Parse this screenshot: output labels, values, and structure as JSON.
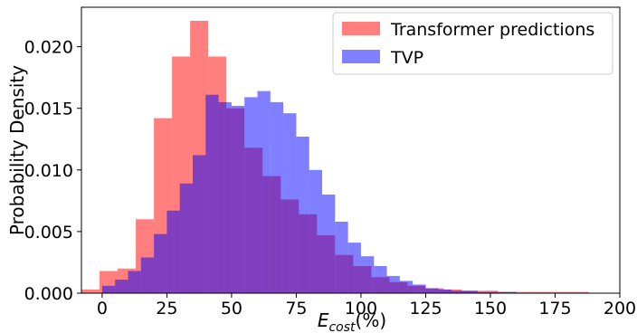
{
  "chart_data": {
    "type": "bar",
    "subtype": "overlapping-histogram",
    "title": "",
    "xlabel": "E",
    "xlabel_subscript": "cost",
    "xlabel_suffix": "(%)",
    "ylabel": "Probability Density",
    "xlim": [
      -8,
      200
    ],
    "ylim": [
      0,
      0.0232
    ],
    "x_ticks": [
      0,
      25,
      50,
      75,
      100,
      125,
      150,
      175,
      200
    ],
    "x_tick_labels": [
      "0",
      "25",
      "50",
      "75",
      "100",
      "125",
      "150",
      "175",
      "200"
    ],
    "y_ticks": [
      0,
      0.005,
      0.01,
      0.015,
      0.02
    ],
    "y_tick_labels": [
      "0.000",
      "0.005",
      "0.010",
      "0.015",
      "0.020"
    ],
    "grid": false,
    "legend_position": "top-right",
    "series": [
      {
        "name": "Transformer predictions",
        "color": "#ff0000",
        "alpha": 0.5,
        "bins": [
          [
            -8,
            -1,
            0.0003
          ],
          [
            -1,
            6,
            0.0018
          ],
          [
            6,
            13,
            0.002
          ],
          [
            13,
            20,
            0.006
          ],
          [
            20,
            27,
            0.0142
          ],
          [
            27,
            34,
            0.0192
          ],
          [
            34,
            41,
            0.0221
          ],
          [
            41,
            48,
            0.0192
          ],
          [
            48,
            55,
            0.015
          ],
          [
            55,
            62,
            0.0118
          ],
          [
            62,
            69,
            0.0095
          ],
          [
            69,
            76,
            0.0076
          ],
          [
            76,
            83,
            0.0064
          ],
          [
            83,
            90,
            0.0047
          ],
          [
            90,
            97,
            0.0031
          ],
          [
            97,
            104,
            0.0022
          ],
          [
            104,
            111,
            0.0013
          ],
          [
            111,
            118,
            0.0009
          ],
          [
            118,
            125,
            0.0006
          ],
          [
            125,
            132,
            0.0004
          ],
          [
            132,
            139,
            0.0003
          ],
          [
            139,
            146,
            0.0002
          ],
          [
            146,
            153,
            0.0002
          ],
          [
            153,
            160,
            0.0001
          ],
          [
            160,
            167,
            0.0001
          ],
          [
            167,
            174,
            0.0001
          ],
          [
            174,
            181,
            0.0001
          ],
          [
            181,
            188,
            0.0001
          ]
        ]
      },
      {
        "name": "TVP",
        "color": "#0000ff",
        "alpha": 0.5,
        "bins": [
          [
            0,
            5,
            0.0006
          ],
          [
            5,
            10,
            0.0011
          ],
          [
            10,
            15,
            0.0018
          ],
          [
            15,
            20,
            0.0029
          ],
          [
            20,
            25,
            0.0048
          ],
          [
            25,
            30,
            0.0067
          ],
          [
            30,
            35,
            0.0089
          ],
          [
            35,
            40,
            0.0112
          ],
          [
            40,
            45,
            0.0161
          ],
          [
            45,
            50,
            0.0155
          ],
          [
            50,
            55,
            0.0152
          ],
          [
            55,
            60,
            0.0159
          ],
          [
            60,
            65,
            0.0164
          ],
          [
            65,
            70,
            0.0155
          ],
          [
            70,
            75,
            0.0146
          ],
          [
            75,
            80,
            0.0127
          ],
          [
            80,
            85,
            0.01
          ],
          [
            85,
            90,
            0.008
          ],
          [
            90,
            95,
            0.0058
          ],
          [
            95,
            100,
            0.0041
          ],
          [
            100,
            105,
            0.003
          ],
          [
            105,
            110,
            0.0022
          ],
          [
            110,
            115,
            0.0014
          ],
          [
            115,
            120,
            0.001
          ],
          [
            120,
            125,
            0.0007
          ],
          [
            125,
            130,
            0.0004
          ],
          [
            130,
            135,
            0.0003
          ],
          [
            135,
            140,
            0.0002
          ],
          [
            140,
            145,
            0.0002
          ],
          [
            145,
            150,
            0.0001
          ],
          [
            150,
            155,
            0.0001
          ],
          [
            155,
            160,
            0.0001
          ]
        ]
      }
    ]
  }
}
